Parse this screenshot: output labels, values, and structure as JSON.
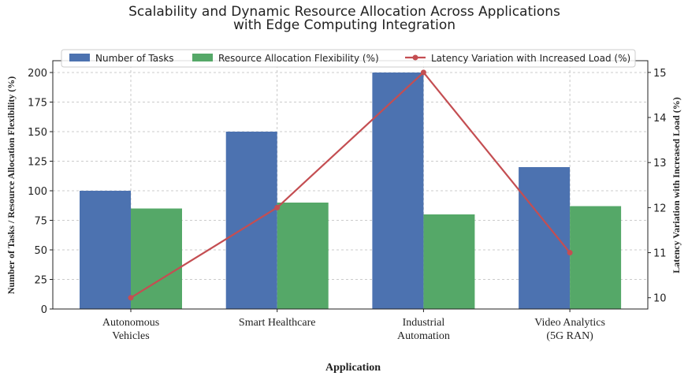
{
  "chart_data": {
    "type": "bar_line",
    "title": "Scalability and Dynamic Resource Allocation Across Applications\nwith Edge Computing Integration",
    "xlabel": "Application",
    "ylabel": "Number of Tasks / Resource Allocation Flexibility (%)",
    "y2label": "Latency Variation with Increased Load (%)",
    "categories": [
      "Autonomous\nVehicles",
      "Smart Healthcare",
      "Industrial\nAutomation",
      "Video Analytics\n(5G RAN)"
    ],
    "series": [
      {
        "name": "Number of Tasks",
        "color": "#4c72b0",
        "type": "bar",
        "values": [
          100,
          150,
          200,
          120
        ]
      },
      {
        "name": "Resource Allocation Flexibility (%)",
        "color": "#55a868",
        "type": "bar",
        "values": [
          85,
          90,
          80,
          87
        ]
      },
      {
        "name": "Latency Variation with Increased Load (%)",
        "color": "#c44e52",
        "type": "line",
        "axis": "y2",
        "values": [
          10,
          12,
          15,
          11
        ]
      }
    ],
    "ylim": [
      0,
      210
    ],
    "yticks": [
      0,
      25,
      50,
      75,
      100,
      125,
      150,
      175,
      200
    ],
    "y2lim": [
      9.75,
      15.26
    ],
    "y2ticks": [
      10,
      11,
      12,
      13,
      14,
      15
    ],
    "grid": true,
    "legend": "top"
  }
}
